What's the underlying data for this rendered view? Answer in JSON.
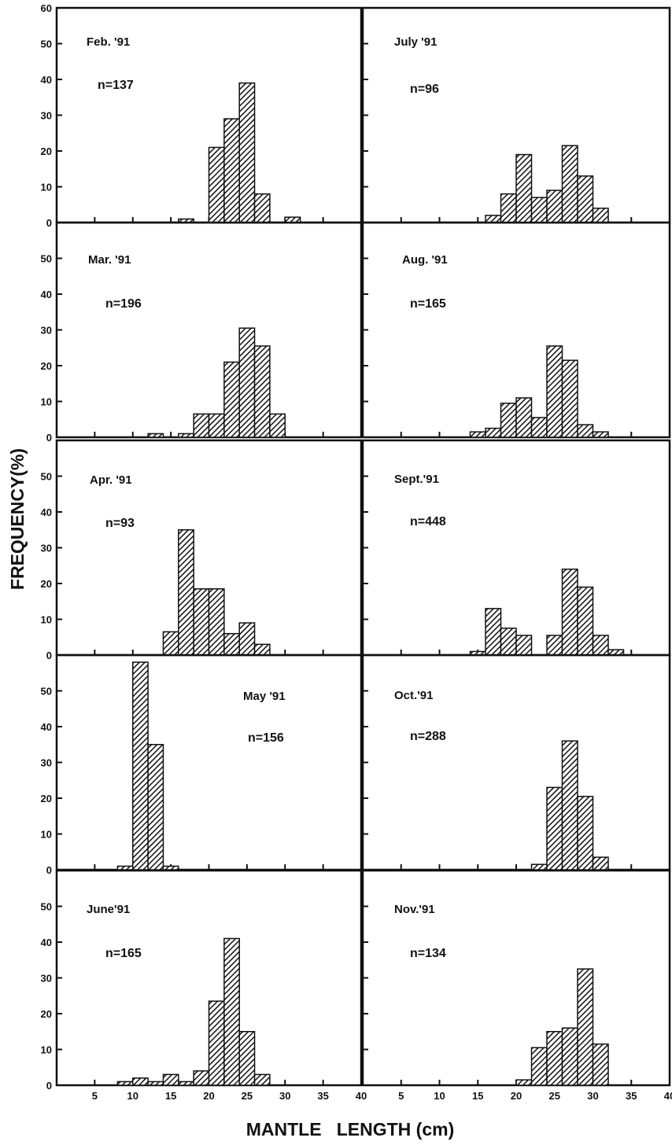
{
  "figure": {
    "ylabel": "FREQUENCY(%)",
    "xlabel": "MANTLE   LENGTH (cm)",
    "x_ticks": [
      "5",
      "10",
      "15",
      "20",
      "25",
      "30",
      "35",
      "40"
    ],
    "y_ticks_top": [
      "0",
      "10",
      "20",
      "30",
      "40",
      "50",
      "60"
    ],
    "y_ticks": [
      "0",
      "10",
      "20",
      "30",
      "40",
      "50"
    ],
    "bar_fill": "#111111"
  },
  "chart_data": [
    {
      "type": "bar",
      "column": "left",
      "title": "Feb. '91",
      "n_label": "n=137",
      "bin_width": 2,
      "xlim": [
        0,
        40
      ],
      "ylim": [
        0,
        60
      ],
      "xlabel": "MANTLE LENGTH (cm)",
      "ylabel": "FREQUENCY(%)",
      "x": [
        16,
        20,
        22,
        24,
        26,
        30
      ],
      "values": [
        1,
        21,
        29,
        39,
        8,
        1.5
      ]
    },
    {
      "type": "bar",
      "column": "left",
      "title": "Mar. '91",
      "n_label": "n=196",
      "bin_width": 2,
      "xlim": [
        0,
        40
      ],
      "ylim": [
        0,
        60
      ],
      "xlabel": "MANTLE LENGTH (cm)",
      "ylabel": "FREQUENCY(%)",
      "x": [
        12,
        16,
        18,
        20,
        22,
        24,
        26,
        28
      ],
      "values": [
        1,
        1,
        6.5,
        6.5,
        21,
        30.5,
        25.5,
        6.5
      ]
    },
    {
      "type": "bar",
      "column": "left",
      "title": "Apr. '91",
      "n_label": "n=93",
      "bin_width": 2,
      "xlim": [
        0,
        40
      ],
      "ylim": [
        0,
        60
      ],
      "xlabel": "MANTLE LENGTH (cm)",
      "ylabel": "FREQUENCY(%)",
      "x": [
        14,
        16,
        18,
        20,
        22,
        24,
        26
      ],
      "values": [
        6.5,
        35,
        18.5,
        18.5,
        6,
        9,
        3
      ]
    },
    {
      "type": "bar",
      "column": "left",
      "title": "May '91",
      "n_label": "n=156",
      "bin_width": 2,
      "xlim": [
        0,
        40
      ],
      "ylim": [
        0,
        60
      ],
      "xlabel": "MANTLE LENGTH (cm)",
      "ylabel": "FREQUENCY(%)",
      "x": [
        8,
        10,
        12,
        14
      ],
      "values": [
        1,
        58,
        35,
        1
      ]
    },
    {
      "type": "bar",
      "column": "left",
      "title": "June'91",
      "n_label": "n=165",
      "bin_width": 2,
      "xlim": [
        0,
        40
      ],
      "ylim": [
        0,
        60
      ],
      "xlabel": "MANTLE LENGTH (cm)",
      "ylabel": "FREQUENCY(%)",
      "x": [
        8,
        10,
        12,
        14,
        16,
        18,
        20,
        22,
        24,
        26
      ],
      "values": [
        1,
        2,
        1,
        3,
        1,
        4,
        23.5,
        41,
        15,
        3
      ]
    },
    {
      "type": "bar",
      "column": "right",
      "title": "July '91",
      "n_label": "n=96",
      "bin_width": 2,
      "xlim": [
        0,
        40
      ],
      "ylim": [
        0,
        60
      ],
      "xlabel": "MANTLE LENGTH (cm)",
      "ylabel": "FREQUENCY(%)",
      "x": [
        16,
        18,
        20,
        22,
        24,
        26,
        28,
        30
      ],
      "values": [
        2,
        8,
        19,
        7,
        9,
        21.5,
        13,
        4
      ]
    },
    {
      "type": "bar",
      "column": "right",
      "title": "Aug. '91",
      "n_label": "n=165",
      "bin_width": 2,
      "xlim": [
        0,
        40
      ],
      "ylim": [
        0,
        60
      ],
      "xlabel": "MANTLE LENGTH (cm)",
      "ylabel": "FREQUENCY(%)",
      "x": [
        14,
        16,
        18,
        20,
        22,
        24,
        26,
        28,
        30
      ],
      "values": [
        1.5,
        2.5,
        9.5,
        11,
        5.5,
        25.5,
        21.5,
        3.5,
        1.5
      ]
    },
    {
      "type": "bar",
      "column": "right",
      "title": "Sept.'91",
      "n_label": "n=448",
      "bin_width": 2,
      "xlim": [
        0,
        40
      ],
      "ylim": [
        0,
        60
      ],
      "xlabel": "MANTLE LENGTH (cm)",
      "ylabel": "FREQUENCY(%)",
      "x": [
        14,
        16,
        18,
        20,
        24,
        26,
        28,
        30,
        32
      ],
      "values": [
        1,
        13,
        7.5,
        5.5,
        5.5,
        24,
        19,
        5.5,
        1.5
      ]
    },
    {
      "type": "bar",
      "column": "right",
      "title": "Oct.'91",
      "n_label": "n=288",
      "bin_width": 2,
      "xlim": [
        0,
        40
      ],
      "ylim": [
        0,
        60
      ],
      "xlabel": "MANTLE LENGTH (cm)",
      "ylabel": "FREQUENCY(%)",
      "x": [
        22,
        24,
        26,
        28,
        30
      ],
      "values": [
        1.5,
        23,
        36,
        20.5,
        3.5
      ]
    },
    {
      "type": "bar",
      "column": "right",
      "title": "Nov.'91",
      "n_label": "n=134",
      "bin_width": 2,
      "xlim": [
        0,
        40
      ],
      "ylim": [
        0,
        60
      ],
      "xlabel": "MANTLE LENGTH (cm)",
      "ylabel": "FREQUENCY(%)",
      "x": [
        20,
        22,
        24,
        26,
        28,
        30
      ],
      "values": [
        1.5,
        10.5,
        15,
        16,
        32.5,
        11.5
      ]
    }
  ]
}
